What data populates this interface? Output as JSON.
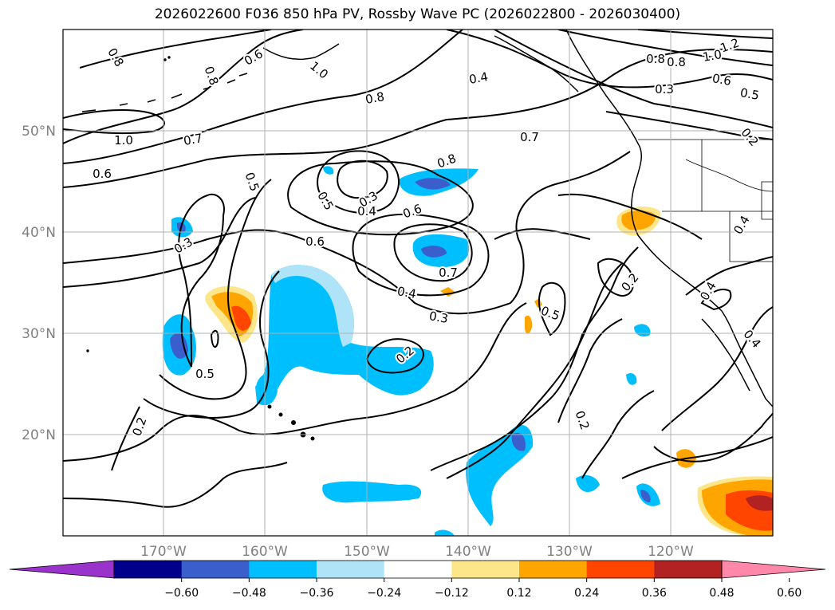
{
  "title": "2026022600 F036 850 hPa PV, Rossby Wave PC (2026022800 - 2026030400)",
  "lat_labels": [
    "50°N",
    "40°N",
    "30°N",
    "20°N"
  ],
  "lon_labels": [
    "170°W",
    "160°W",
    "150°W",
    "140°W",
    "130°W",
    "120°W"
  ],
  "colorbar": {
    "ticks": [
      "−0.60",
      "−0.48",
      "−0.36",
      "−0.24",
      "−0.12",
      "0.12",
      "0.24",
      "0.36",
      "0.48",
      "0.60"
    ],
    "colors": [
      "#9933cc",
      "#00008b",
      "#3a5fcd",
      "#00bfff",
      "#aee3f8",
      "#ffffff",
      "#fde68a",
      "#ffa500",
      "#ff4500",
      "#b22222",
      "#ff88aa"
    ]
  },
  "contour_labels": [
    "0.8",
    "0.8",
    "0.6",
    "1.0",
    "0.8",
    "0.4",
    "0.8",
    "1.0",
    "1.2",
    "0.8",
    "0.6",
    "0.5",
    "0.3",
    "0.2",
    "1.0",
    "0.7",
    "0.6",
    "0.5",
    "0.5",
    "0.4",
    "0.3",
    "0.8",
    "0.6",
    "0.7",
    "0.6",
    "0.7",
    "0.4",
    "0.3",
    "0.5",
    "0.5",
    "0.3",
    "0.2",
    "0.2",
    "0.2",
    "0.2",
    "0.4",
    "0.4",
    "0.4"
  ]
}
